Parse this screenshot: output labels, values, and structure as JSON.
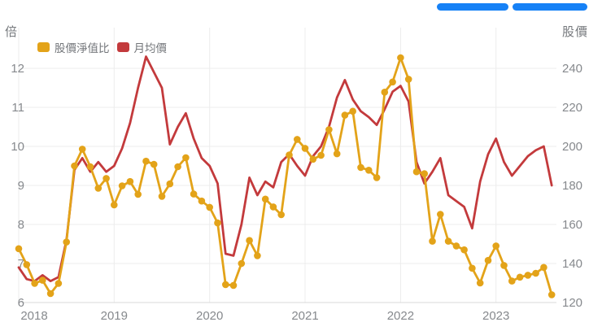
{
  "toolbar": {
    "pill_color": "#1681F6"
  },
  "chart": {
    "left_axis": {
      "title": "倍",
      "labels": [
        "12",
        "11",
        "10",
        "9",
        "8",
        "7",
        "6"
      ]
    },
    "right_axis": {
      "title": "股價",
      "labels": [
        "240",
        "220",
        "200",
        "180",
        "160",
        "140",
        "120"
      ]
    },
    "x_axis": {
      "labels": [
        "2018",
        "2019",
        "2020",
        "2021",
        "2022",
        "2023"
      ]
    },
    "legend": [
      {
        "label": "股價淨值比",
        "color": "#E3A319"
      },
      {
        "label": "月均價",
        "color": "#C33A3C"
      }
    ]
  },
  "chart_data": {
    "type": "line",
    "title": "",
    "x": {
      "start": "2018-01",
      "end": "2023-08",
      "interval": "monthly",
      "count": 68
    },
    "x_year_ticks": [
      "2018",
      "2019",
      "2020",
      "2021",
      "2022",
      "2023"
    ],
    "left_axis_label": "倍",
    "right_axis_label": "股價",
    "left_ylim": [
      6,
      13
    ],
    "right_ylim": [
      120,
      260
    ],
    "grid": true,
    "legend_position": "top-left",
    "series": [
      {
        "key": "pb_ratio",
        "name": "股價淨值比",
        "axis": "left",
        "color": "#E3A319",
        "markers": true,
        "marker_radius": 4.3,
        "line_width": 2.8,
        "z": 2,
        "values": [
          7.38,
          6.97,
          6.49,
          6.57,
          6.23,
          6.49,
          7.55,
          9.5,
          9.93,
          9.48,
          8.93,
          9.18,
          8.5,
          8.99,
          9.1,
          8.77,
          9.62,
          9.54,
          8.72,
          9.04,
          9.48,
          9.71,
          8.78,
          8.6,
          8.44,
          8.04,
          6.46,
          6.44,
          7.0,
          7.59,
          7.2,
          8.65,
          8.45,
          8.25,
          9.78,
          10.18,
          9.95,
          9.67,
          9.77,
          10.43,
          9.81,
          10.8,
          10.9,
          9.46,
          9.39,
          9.2,
          11.39,
          11.65,
          12.27,
          11.72,
          9.35,
          9.3,
          7.57,
          8.26,
          7.57,
          7.45,
          7.35,
          6.88,
          6.5,
          7.08,
          7.45,
          6.95,
          6.55,
          6.65,
          6.7,
          6.75,
          6.9,
          6.2
        ]
      },
      {
        "key": "monthly_avg_price",
        "name": "月均價",
        "axis": "right",
        "color": "#C33A3C",
        "markers": false,
        "line_width": 2.8,
        "z": 1,
        "values": [
          138,
          132,
          131,
          134,
          131,
          133,
          152,
          188,
          194,
          187,
          192,
          187,
          190,
          199,
          212,
          230,
          246,
          238,
          230,
          201,
          210,
          217,
          204,
          194,
          190,
          181,
          145,
          144,
          160,
          184,
          175,
          182,
          179,
          192,
          196,
          190,
          185,
          195,
          200,
          210,
          225,
          234,
          224,
          218,
          215,
          211,
          219,
          228,
          231,
          223,
          192,
          181,
          187,
          194,
          175,
          172,
          169,
          158,
          182,
          196,
          204,
          192,
          185,
          190,
          195,
          198,
          200,
          180
        ]
      }
    ]
  }
}
